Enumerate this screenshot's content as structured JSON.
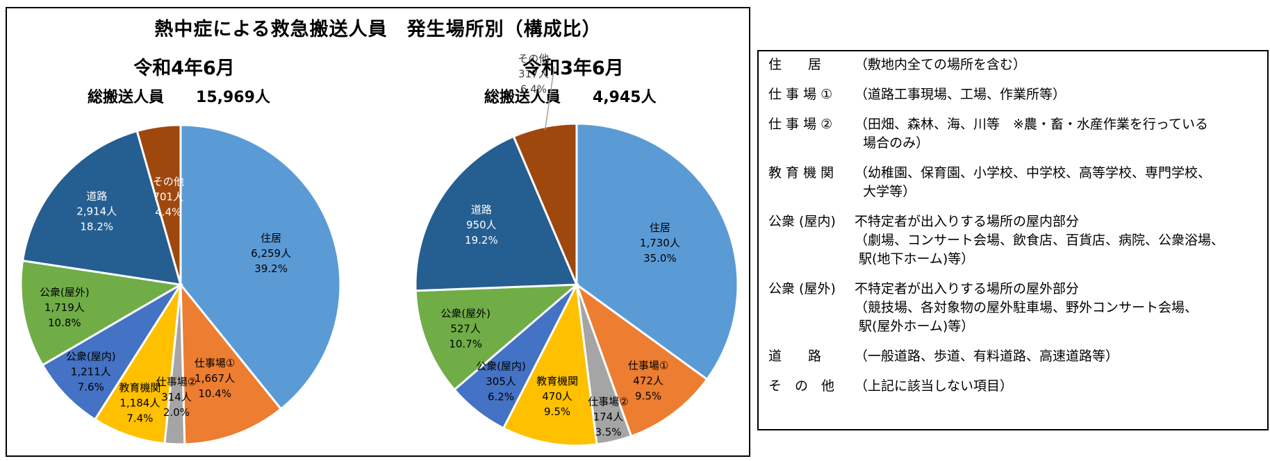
{
  "title": "熱中症による救急搬送人員　発生場所別（構成比）",
  "chart_data": [
    {
      "type": "pie",
      "title": "令和4年6月",
      "total_label": "総搬送人員",
      "total_value": "15,969人",
      "start_angle_deg": 0,
      "direction": "clockwise",
      "slices": [
        {
          "name": "住居",
          "count": "6,259人",
          "percent": "39.2%",
          "value": 39.2,
          "color": "#5b9bd5",
          "label_color": "#000000"
        },
        {
          "name": "仕事場①",
          "count": "1,667人",
          "percent": "10.4%",
          "value": 10.4,
          "color": "#ed7d31",
          "label_color": "#000000"
        },
        {
          "name": "仕事場②",
          "count": "314人",
          "percent": "2.0%",
          "value": 2.0,
          "color": "#a5a5a5",
          "label_color": "#000000"
        },
        {
          "name": "教育機関",
          "count": "1,184人",
          "percent": "7.4%",
          "value": 7.4,
          "color": "#ffc000",
          "label_color": "#000000"
        },
        {
          "name": "公衆(屋内)",
          "count": "1,211人",
          "percent": "7.6%",
          "value": 7.6,
          "color": "#4472c4",
          "label_color": "#000000"
        },
        {
          "name": "公衆(屋外)",
          "count": "1,719人",
          "percent": "10.8%",
          "value": 10.8,
          "color": "#70ad47",
          "label_color": "#000000"
        },
        {
          "name": "道路",
          "count": "2,914人",
          "percent": "18.2%",
          "value": 18.2,
          "color": "#255e91",
          "label_color": "#ffffff"
        },
        {
          "name": "その他",
          "count": "701人",
          "percent": "4.4%",
          "value": 4.4,
          "color": "#9e480e",
          "label_color": "#ffffff"
        }
      ]
    },
    {
      "type": "pie",
      "title": "令和3年6月",
      "total_label": "総搬送人員",
      "total_value": "4,945人",
      "start_angle_deg": 0,
      "direction": "clockwise",
      "slices": [
        {
          "name": "住居",
          "count": "1,730人",
          "percent": "35.0%",
          "value": 35.0,
          "color": "#5b9bd5",
          "label_color": "#000000"
        },
        {
          "name": "仕事場①",
          "count": "472人",
          "percent": "9.5%",
          "value": 9.5,
          "color": "#ed7d31",
          "label_color": "#000000"
        },
        {
          "name": "仕事場②",
          "count": "174人",
          "percent": "3.5%",
          "value": 3.5,
          "color": "#a5a5a5",
          "label_color": "#000000"
        },
        {
          "name": "教育機関",
          "count": "470人",
          "percent": "9.5%",
          "value": 9.5,
          "color": "#ffc000",
          "label_color": "#000000"
        },
        {
          "name": "公衆(屋内)",
          "count": "305人",
          "percent": "6.2%",
          "value": 6.2,
          "color": "#4472c4",
          "label_color": "#000000"
        },
        {
          "name": "公衆(屋外)",
          "count": "527人",
          "percent": "10.7%",
          "value": 10.7,
          "color": "#70ad47",
          "label_color": "#000000"
        },
        {
          "name": "道路",
          "count": "950人",
          "percent": "19.2%",
          "value": 19.2,
          "color": "#255e91",
          "label_color": "#ffffff"
        },
        {
          "name": "その他",
          "count": "317人",
          "percent": "6.4%",
          "value": 6.4,
          "color": "#9e480e",
          "label_color": "#000000"
        }
      ]
    }
  ],
  "legend": [
    {
      "term": "住　　居",
      "desc": [
        "（敷地内全ての場所を含む）"
      ]
    },
    {
      "term": "仕 事 場 ①",
      "desc": [
        "（道路工事現場、工場、作業所等）"
      ]
    },
    {
      "term": "仕 事 場 ②",
      "desc": [
        "（田畑、森林、海、川等　※農・畜・水産作業を行っている",
        "  場合のみ）"
      ]
    },
    {
      "term": "教 育 機 関",
      "desc": [
        "（幼稚園、保育園、小学校、中学校、高等学校、専門学校、",
        "  大学等）"
      ]
    },
    {
      "term": "公衆 (屋内)",
      "desc": [
        "不特定者が出入りする場所の屋内部分",
        "（劇場、コンサート会場、飲食店、百貨店、病院、公衆浴場、",
        " 駅(地下ホーム)等）"
      ]
    },
    {
      "term": "公衆 (屋外)",
      "desc": [
        "不特定者が出入りする場所の屋外部分",
        "（競技場、各対象物の屋外駐車場、野外コンサート会場、",
        " 駅(屋外ホーム)等）"
      ]
    },
    {
      "term": "道　　路",
      "desc": [
        "（一般道路、歩道、有料道路、高速道路等）"
      ]
    },
    {
      "term": "そ　の　他",
      "desc": [
        "（上記に該当しない項目）"
      ]
    }
  ]
}
